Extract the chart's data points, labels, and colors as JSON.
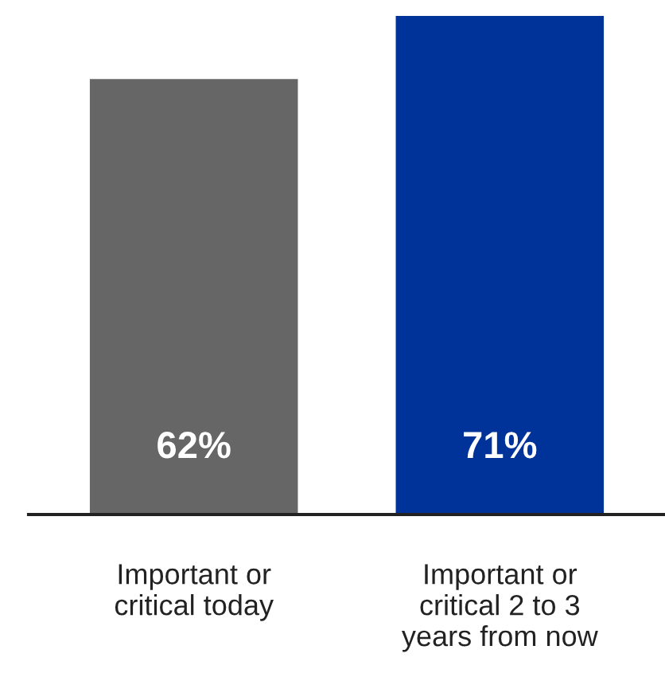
{
  "chart_data": {
    "type": "bar",
    "categories": [
      "Important or\ncritical today",
      "Important or\ncritical 2 to 3\nyears from now"
    ],
    "values": [
      62,
      71
    ],
    "colors": [
      "#666666",
      "#003399"
    ],
    "value_labels": [
      "62%",
      "71%"
    ],
    "grid": false,
    "legend": false
  }
}
